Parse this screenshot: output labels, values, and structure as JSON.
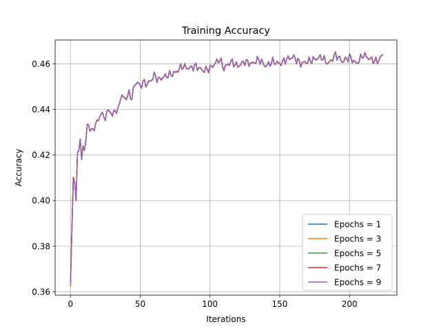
{
  "chart_data": {
    "type": "line",
    "title": "Training Accuracy",
    "xlabel": "Iterations",
    "ylabel": "Accuracy",
    "xlim": [
      -11,
      234
    ],
    "ylim": [
      0.3585,
      0.4705
    ],
    "xticks": [
      0,
      50,
      100,
      150,
      200
    ],
    "yticks": [
      0.36,
      0.38,
      0.4,
      0.42,
      0.44,
      0.46
    ],
    "ytick_labels": [
      "0.36",
      "0.38",
      "0.40",
      "0.42",
      "0.44",
      "0.46"
    ],
    "grid": true,
    "legend_position": "lower-right",
    "series": [
      {
        "name": "Epochs = 1",
        "color": "#1f77b4",
        "last_x": 224
      },
      {
        "name": "Epochs = 3",
        "color": "#ff7f0e",
        "last_x": 224
      },
      {
        "name": "Epochs = 5",
        "color": "#2ca02c",
        "last_x": 224
      },
      {
        "name": "Epochs = 7",
        "color": "#d62728",
        "last_x": 224
      },
      {
        "name": "Epochs = 9",
        "color": "#9467bd",
        "last_x": 224
      }
    ],
    "reference_curve": {
      "x": [
        0,
        1,
        2,
        3,
        4,
        5,
        6,
        7,
        8,
        9,
        10,
        11,
        12,
        14,
        16,
        18,
        20,
        22,
        24,
        26,
        28,
        30,
        32,
        34,
        36,
        38,
        40,
        42,
        44,
        46,
        48,
        50,
        52,
        55,
        58,
        60,
        63,
        66,
        70,
        75,
        80,
        85,
        90,
        95,
        100,
        105,
        107,
        110,
        115,
        120,
        125,
        130,
        135,
        140,
        145,
        150,
        155,
        160,
        165,
        170,
        175,
        180,
        185,
        190,
        195,
        200,
        205,
        210,
        215,
        220,
        224
      ],
      "y": [
        0.363,
        0.386,
        0.409,
        0.408,
        0.4,
        0.421,
        0.422,
        0.427,
        0.418,
        0.424,
        0.422,
        0.426,
        0.433,
        0.432,
        0.43,
        0.434,
        0.435,
        0.439,
        0.436,
        0.438,
        0.44,
        0.437,
        0.44,
        0.439,
        0.446,
        0.445,
        0.445,
        0.447,
        0.445,
        0.451,
        0.452,
        0.45,
        0.452,
        0.451,
        0.453,
        0.455,
        0.453,
        0.454,
        0.455,
        0.456,
        0.459,
        0.458,
        0.459,
        0.457,
        0.458,
        0.461,
        0.462,
        0.458,
        0.461,
        0.459,
        0.461,
        0.46,
        0.462,
        0.459,
        0.461,
        0.46,
        0.462,
        0.463,
        0.46,
        0.461,
        0.462,
        0.463,
        0.46,
        0.464,
        0.461,
        0.463,
        0.46,
        0.464,
        0.462,
        0.461,
        0.464
      ]
    },
    "series_offsets": [
      0.0,
      -0.0003,
      0.0002,
      0.0004,
      0.0
    ]
  }
}
